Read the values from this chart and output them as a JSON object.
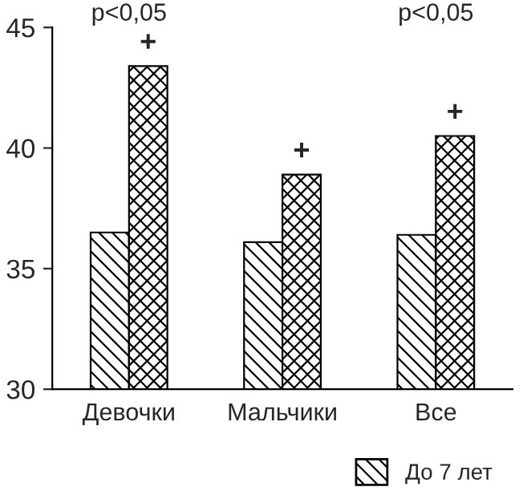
{
  "chart_data": {
    "type": "bar",
    "categories": [
      "Девочки",
      "Мальчики",
      "Все"
    ],
    "series": [
      {
        "name": "До 7 лет",
        "color": "#000000",
        "values": [
          36.5,
          36.1,
          36.4
        ]
      },
      {
        "color": "#000000",
        "values": [
          43.4,
          38.9,
          40.5
        ]
      }
    ],
    "ylim": [
      30,
      45
    ],
    "yticks": [
      30,
      35,
      40,
      45
    ],
    "grid": false,
    "legend": "bottom right",
    "annotations": [
      "p<0,05",
      "p<0,05",
      "+",
      "+",
      "+"
    ]
  }
}
